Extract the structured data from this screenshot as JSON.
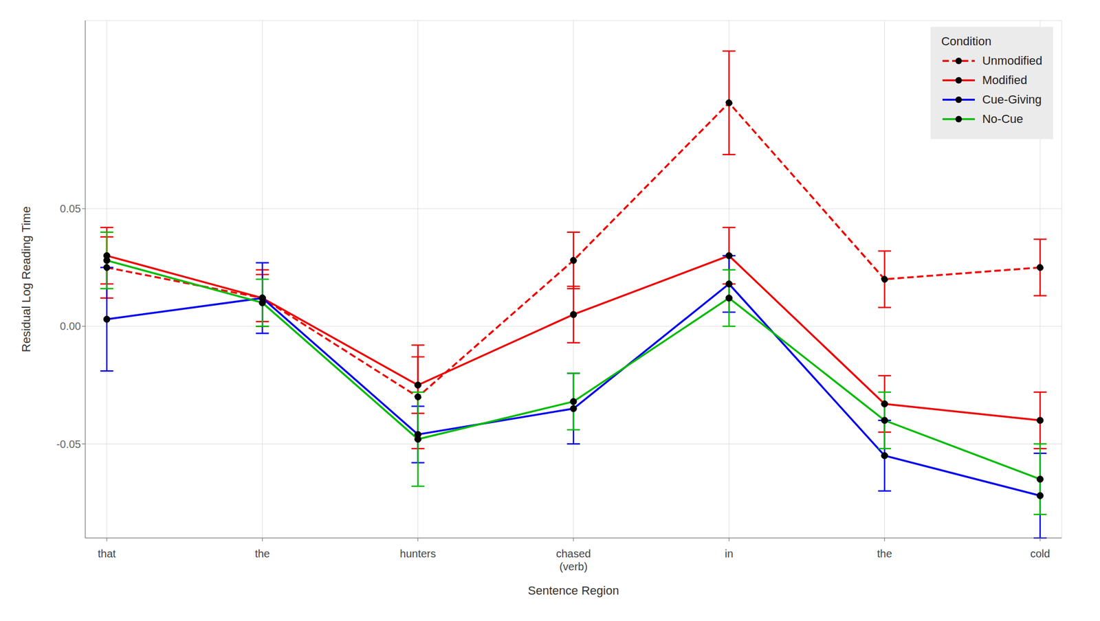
{
  "chart_data": {
    "type": "line",
    "xlabel": "Sentence Region",
    "ylabel": "Residual Log Reading Time",
    "categories": [
      "that",
      "the",
      "hunters",
      "chased\n(verb)",
      "in",
      "the",
      "cold"
    ],
    "series": [
      {
        "name": "Unmodified",
        "color": "#EE0000",
        "line_style": "dashed",
        "marker": "circle",
        "values": [
          0.025,
          0.012,
          -0.03,
          0.028,
          0.095,
          0.02,
          0.025
        ],
        "errors": [
          0.013,
          0.012,
          0.022,
          0.012,
          0.022,
          0.012,
          0.012
        ]
      },
      {
        "name": "Modified",
        "color": "#EE0000",
        "line_style": "solid",
        "marker": "circle",
        "values": [
          0.03,
          0.012,
          -0.025,
          0.005,
          0.03,
          -0.033,
          -0.04
        ],
        "errors": [
          0.012,
          0.01,
          0.012,
          0.012,
          0.012,
          0.012,
          0.012
        ]
      },
      {
        "name": "Cue-Giving",
        "color": "#0000EE",
        "line_style": "solid",
        "marker": "circle",
        "values": [
          0.003,
          0.012,
          -0.046,
          -0.035,
          0.018,
          -0.055,
          -0.072
        ],
        "errors": [
          0.022,
          0.015,
          0.012,
          0.015,
          0.012,
          0.015,
          0.018
        ]
      },
      {
        "name": "No-Cue",
        "color": "#00BB00",
        "line_style": "solid",
        "marker": "circle",
        "values": [
          0.028,
          0.01,
          -0.048,
          -0.032,
          0.012,
          -0.04,
          -0.065
        ],
        "errors": [
          0.012,
          0.01,
          0.02,
          0.012,
          0.012,
          0.012,
          0.015
        ]
      }
    ],
    "ylim": [
      -0.09,
      0.13
    ],
    "yticks": [
      -0.05,
      {
        "value": 0,
        "label": "0.00"
      },
      0.05
    ],
    "grid": true,
    "legend": "upper right",
    "legend_title": "Condition"
  }
}
